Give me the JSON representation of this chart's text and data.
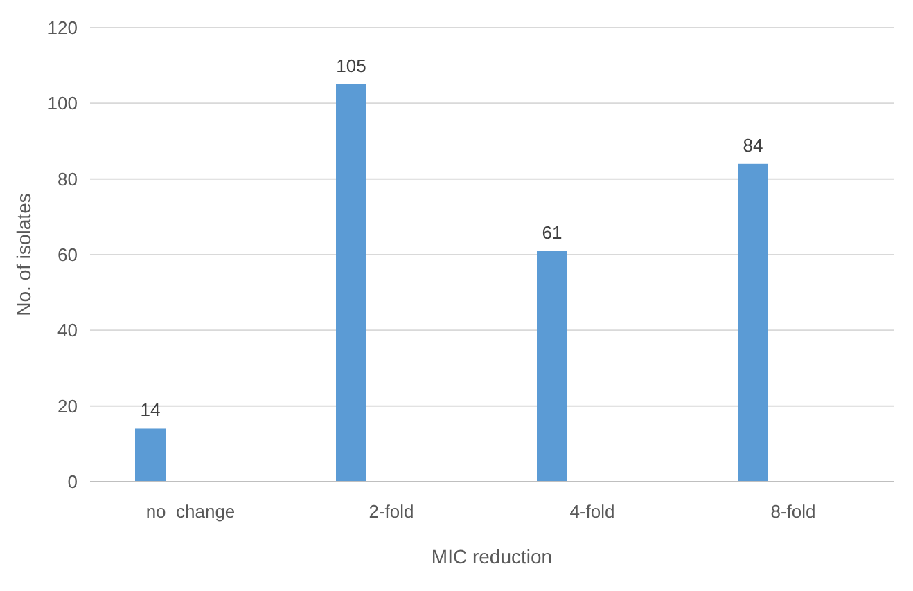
{
  "chart_data": {
    "type": "bar",
    "xlabel": "MIC reduction",
    "ylabel": "No. of isolates",
    "categories": [
      "no  change",
      "2-fold",
      "4-fold",
      "8-fold"
    ],
    "values": [
      14,
      105,
      61,
      84
    ],
    "color": "#5b9bd5",
    "ylim": [
      0,
      120
    ],
    "yticks": [
      0,
      20,
      40,
      60,
      80,
      100,
      120
    ],
    "grid": "y",
    "data_labels": true
  }
}
